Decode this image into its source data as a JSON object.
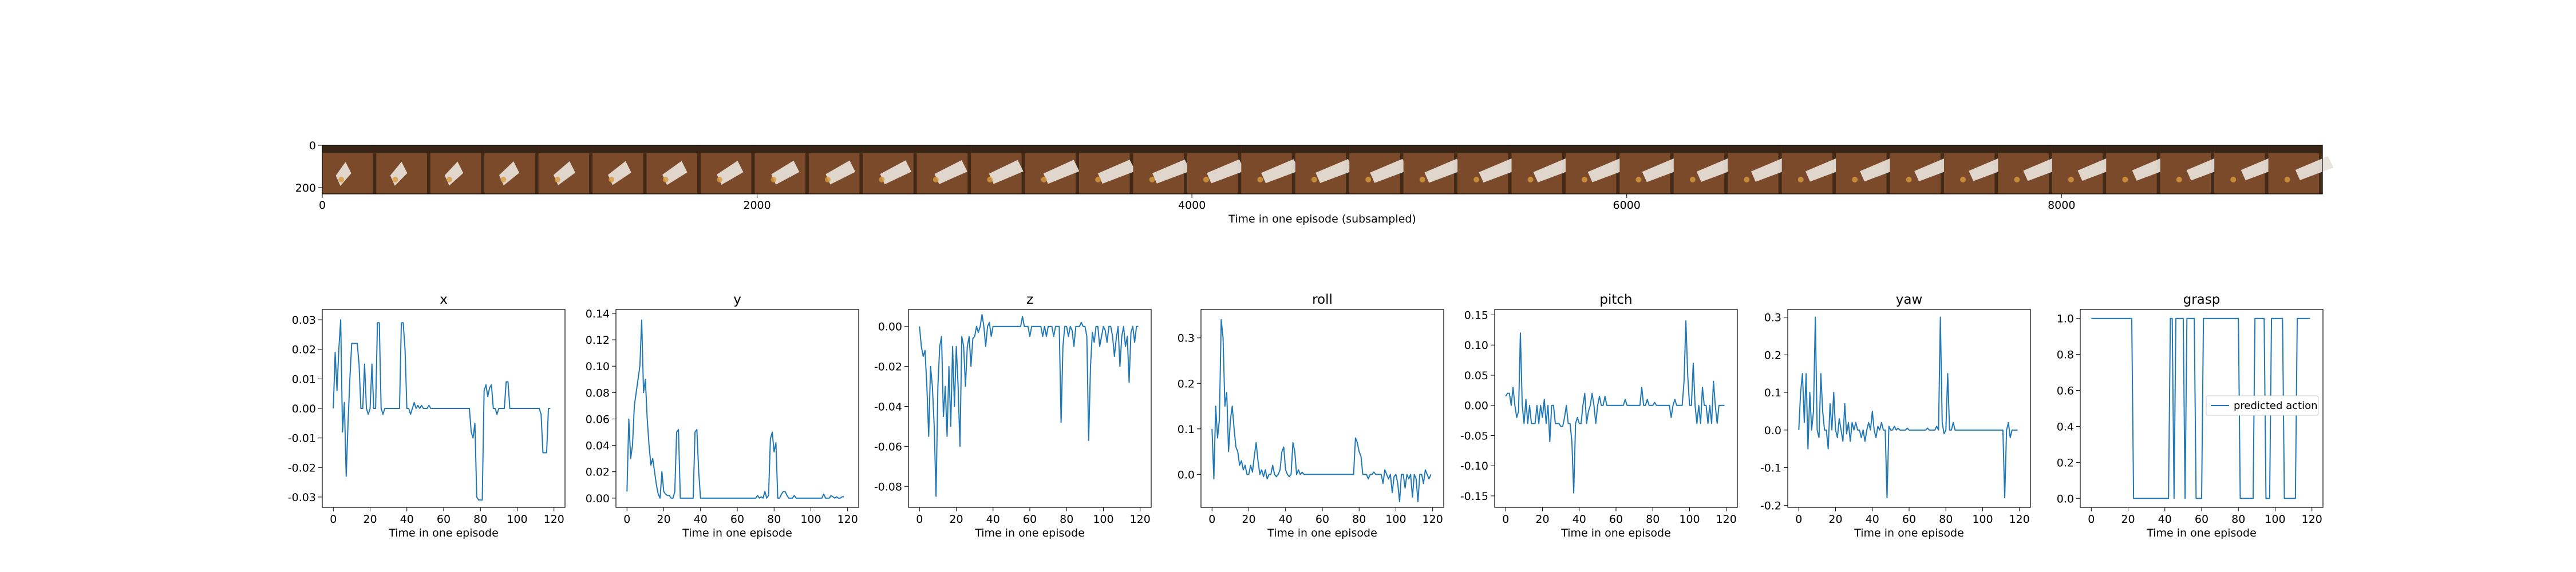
{
  "chart_data": [
    {
      "type": "image-strip",
      "xlabel": "Time in one episode (subsampled)",
      "xticks": [
        0,
        2000,
        4000,
        6000,
        8000
      ],
      "yticks": [
        0,
        200
      ],
      "xlim": [
        0,
        9200
      ],
      "ylim": [
        230,
        0
      ],
      "frame_count": 37,
      "colors": {
        "floor": "#7a4a2a",
        "floor_dark": "#3a2414",
        "object": "#e8e2da",
        "highlight": "#d89a3c"
      }
    },
    {
      "type": "line",
      "title": "x",
      "xlabel": "Time in one episode",
      "xticks": [
        0,
        20,
        40,
        60,
        80,
        100,
        120
      ],
      "yticks": [
        -0.03,
        -0.02,
        -0.01,
        0.0,
        0.01,
        0.02,
        0.03
      ],
      "ytick_decimals": 2,
      "xlim": [
        -6,
        126
      ],
      "ylim": [
        -0.0335,
        0.0335
      ],
      "series": [
        {
          "color": "#1f77b4",
          "y": [
            0.0,
            0.019,
            0.006,
            0.02,
            0.03,
            -0.008,
            0.002,
            -0.023,
            -0.005,
            0.01,
            0.022,
            0.022,
            0.022,
            0.022,
            0.015,
            0.0,
            0.0,
            0.015,
            0.0,
            -0.002,
            0.0,
            0.015,
            0.0,
            0.0,
            0.029,
            0.029,
            0.0,
            -0.002,
            0.0,
            0.0,
            0.0,
            0.0,
            0.0,
            0.0,
            0.0,
            0.0,
            0.0,
            0.029,
            0.029,
            0.02,
            0.0,
            0.0,
            -0.002,
            0.0,
            0.002,
            0.0,
            0.001,
            0.0,
            0.001,
            0.0,
            0.0,
            0.0,
            0.001,
            0.0,
            0.0,
            0.0,
            0.0,
            0.0,
            0.0,
            0.0,
            0.0,
            0.0,
            0.0,
            0.0,
            0.0,
            0.0,
            0.0,
            0.0,
            0.0,
            0.0,
            0.0,
            0.0,
            0.0,
            0.0,
            0.0,
            -0.008,
            -0.01,
            -0.005,
            -0.03,
            -0.031,
            -0.031,
            -0.031,
            0.006,
            0.008,
            0.004,
            0.007,
            0.008,
            0.0,
            0.0,
            -0.002,
            0.0,
            0.0,
            0.0,
            0.0,
            0.009,
            0.009,
            0.0,
            0.0,
            0.0,
            0.0,
            0.0,
            0.0,
            0.0,
            0.0,
            0.0,
            0.0,
            0.0,
            0.0,
            0.0,
            0.0,
            0.0,
            0.0,
            0.0,
            -0.002,
            -0.015,
            -0.015,
            -0.015,
            0.0,
            0.0
          ]
        }
      ]
    },
    {
      "type": "line",
      "title": "y",
      "xlabel": "Time in one episode",
      "xticks": [
        0,
        20,
        40,
        60,
        80,
        100,
        120
      ],
      "yticks": [
        0.0,
        0.02,
        0.04,
        0.06,
        0.08,
        0.1,
        0.12,
        0.14
      ],
      "ytick_decimals": 2,
      "xlim": [
        -6,
        126
      ],
      "ylim": [
        -0.007,
        0.143
      ],
      "series": [
        {
          "color": "#1f77b4",
          "y": [
            0.005,
            0.06,
            0.03,
            0.04,
            0.07,
            0.08,
            0.09,
            0.1,
            0.135,
            0.08,
            0.09,
            0.06,
            0.04,
            0.025,
            0.03,
            0.02,
            0.01,
            0.003,
            0.0,
            0.02,
            0.005,
            0.003,
            0.002,
            0.002,
            0.0,
            0.0,
            0.005,
            0.05,
            0.052,
            0.0,
            0.0,
            0.0,
            0.0,
            0.0,
            0.0,
            0.0,
            0.0,
            0.05,
            0.052,
            0.02,
            0.0,
            0.0,
            0.0,
            0.0,
            0.0,
            0.0,
            0.0,
            0.0,
            0.0,
            0.0,
            0.0,
            0.0,
            0.0,
            0.0,
            0.0,
            0.0,
            0.0,
            0.0,
            0.0,
            0.0,
            0.0,
            0.0,
            0.0,
            0.0,
            0.0,
            0.0,
            0.0,
            0.0,
            0.0,
            0.0,
            0.0,
            0.002,
            0.0,
            0.001,
            0.0,
            0.005,
            0.0,
            0.002,
            0.045,
            0.05,
            0.035,
            0.042,
            0.0,
            0.0,
            0.003,
            0.005,
            0.005,
            0.002,
            0.0,
            0.0,
            0.0,
            0.002,
            0.0,
            0.0,
            0.0,
            0.0,
            0.0,
            0.0,
            0.0,
            0.0,
            0.0,
            0.0,
            0.0,
            0.0,
            0.0,
            0.0,
            0.0,
            0.003,
            0.0,
            0.0,
            0.0,
            0.002,
            0.001,
            0.0,
            0.001,
            0.0,
            0.0,
            0.001,
            0.001
          ]
        }
      ]
    },
    {
      "type": "line",
      "title": "z",
      "xlabel": "Time in one episode",
      "xticks": [
        0,
        20,
        40,
        60,
        80,
        100,
        120
      ],
      "yticks": [
        -0.08,
        -0.06,
        -0.04,
        -0.02,
        0.0
      ],
      "ytick_decimals": 2,
      "xlim": [
        -6,
        126
      ],
      "ylim": [
        -0.0905,
        0.0085
      ],
      "series": [
        {
          "color": "#1f77b4",
          "y": [
            0.0,
            -0.01,
            -0.015,
            -0.012,
            -0.03,
            -0.055,
            -0.02,
            -0.03,
            -0.05,
            -0.085,
            -0.03,
            -0.01,
            -0.005,
            -0.045,
            -0.03,
            -0.055,
            -0.02,
            -0.05,
            -0.01,
            -0.04,
            -0.01,
            -0.03,
            -0.06,
            -0.005,
            -0.01,
            -0.03,
            -0.01,
            -0.005,
            -0.02,
            -0.006,
            -0.005,
            0.0,
            -0.003,
            0.0,
            0.006,
            0.0,
            -0.01,
            0.0,
            0.002,
            -0.005,
            0.0,
            0.0,
            0.0,
            0.0,
            0.0,
            0.0,
            0.0,
            0.0,
            0.0,
            0.0,
            0.0,
            0.0,
            0.0,
            0.0,
            0.0,
            0.0,
            0.005,
            0.0,
            0.0,
            0.0,
            -0.005,
            0.0,
            0.0,
            0.0,
            0.0,
            0.0,
            0.0,
            -0.005,
            0.0,
            -0.005,
            0.0,
            0.0,
            0.0,
            -0.005,
            0.0,
            0.0,
            0.0,
            -0.048,
            -0.01,
            0.0,
            0.0,
            -0.005,
            0.0,
            -0.002,
            -0.01,
            0.0,
            0.0,
            0.0,
            0.002,
            0.0,
            0.0,
            -0.005,
            -0.057,
            -0.02,
            -0.003,
            -0.008,
            0.0,
            0.0,
            -0.01,
            -0.005,
            0.0,
            -0.002,
            -0.008,
            0.0,
            0.0,
            -0.005,
            -0.015,
            -0.006,
            0.0,
            -0.02,
            -0.005,
            0.0,
            -0.01,
            -0.005,
            -0.028,
            -0.003,
            0.0,
            -0.008,
            0.0,
            0.0
          ]
        }
      ]
    },
    {
      "type": "line",
      "title": "roll",
      "xlabel": "Time in one episode",
      "xticks": [
        0,
        20,
        40,
        60,
        80,
        100,
        120
      ],
      "yticks": [
        0.0,
        0.1,
        0.2,
        0.3
      ],
      "ytick_decimals": 1,
      "xlim": [
        -6,
        126
      ],
      "ylim": [
        -0.0725,
        0.3625
      ],
      "series": [
        {
          "color": "#1f77b4",
          "y": [
            0.1,
            -0.01,
            0.15,
            0.08,
            0.12,
            0.34,
            0.3,
            0.15,
            0.18,
            0.05,
            0.12,
            0.15,
            0.1,
            0.06,
            0.05,
            0.02,
            0.03,
            0.01,
            0.02,
            0.0,
            0.0,
            0.02,
            0.005,
            0.04,
            0.07,
            0.03,
            0.0,
            0.01,
            -0.005,
            0.01,
            -0.01,
            0.0,
            0.0,
            0.02,
            0.0,
            -0.005,
            0.0,
            0.01,
            0.05,
            0.06,
            0.01,
            0.0,
            -0.005,
            0.0,
            0.07,
            0.05,
            0.0,
            0.01,
            0.0,
            0.005,
            0.0,
            0.0,
            0.0,
            0.0,
            0.0,
            0.0,
            0.0,
            0.0,
            0.0,
            0.0,
            0.0,
            0.0,
            0.0,
            0.0,
            0.0,
            0.0,
            0.0,
            0.0,
            0.0,
            0.0,
            0.0,
            0.0,
            0.0,
            0.0,
            0.0,
            0.0,
            0.0,
            0.0,
            0.08,
            0.07,
            0.05,
            0.04,
            0.0,
            0.0,
            0.0,
            -0.01,
            0.0,
            0.0,
            0.005,
            0.0,
            0.0,
            0.0,
            0.0,
            -0.02,
            0.01,
            0.0,
            -0.01,
            0.0,
            -0.04,
            -0.005,
            0.0,
            -0.02,
            -0.06,
            0.0,
            0.0,
            -0.03,
            0.0,
            -0.01,
            0.0,
            -0.05,
            0.0,
            -0.01,
            -0.06,
            0.0,
            0.0,
            -0.02,
            0.01,
            0.0,
            -0.01,
            0.0
          ]
        }
      ]
    },
    {
      "type": "line",
      "title": "pitch",
      "xlabel": "Time in one episode",
      "xticks": [
        0,
        20,
        40,
        60,
        80,
        100,
        120
      ],
      "yticks": [
        -0.15,
        -0.1,
        -0.05,
        0.0,
        0.05,
        0.1,
        0.15
      ],
      "ytick_decimals": 2,
      "xlim": [
        -6,
        126
      ],
      "ylim": [
        -0.169,
        0.159
      ],
      "series": [
        {
          "color": "#1f77b4",
          "y": [
            0.015,
            0.02,
            0.02,
            0.0,
            0.03,
            0.0,
            -0.02,
            -0.01,
            0.12,
            0.0,
            -0.03,
            0.01,
            -0.03,
            0.0,
            -0.03,
            -0.03,
            -0.03,
            0.0,
            -0.03,
            0.0,
            -0.02,
            0.01,
            -0.03,
            0.0,
            -0.06,
            0.0,
            0.0,
            -0.03,
            -0.03,
            -0.03,
            -0.035,
            -0.035,
            -0.02,
            0.0,
            -0.03,
            -0.03,
            -0.06,
            -0.145,
            -0.03,
            -0.02,
            -0.03,
            -0.03,
            0.0,
            0.02,
            -0.03,
            -0.01,
            0.0,
            0.02,
            0.0,
            -0.03,
            0.0,
            0.015,
            0.0,
            0.0,
            0.015,
            0.0,
            0.0,
            0.0,
            0.0,
            0.0,
            0.0,
            0.0,
            0.0,
            0.0,
            0.0,
            0.01,
            0.0,
            0.0,
            0.0,
            0.0,
            0.0,
            0.0,
            0.0,
            0.0,
            0.03,
            0.0,
            0.0,
            0.01,
            0.0,
            0.0,
            0.0,
            0.005,
            0.0,
            0.0,
            0.0,
            0.0,
            0.0,
            0.0,
            0.0,
            0.0,
            -0.02,
            0.0,
            0.01,
            0.0,
            0.0,
            0.0,
            0.0,
            0.04,
            0.14,
            0.05,
            0.0,
            0.0,
            0.07,
            0.0,
            -0.03,
            0.0,
            -0.03,
            0.03,
            0.0,
            0.0,
            -0.03,
            0.0,
            -0.03,
            0.04,
            0.0,
            -0.03,
            0.0,
            0.0,
            0.0,
            0.0
          ]
        }
      ]
    },
    {
      "type": "line",
      "title": "yaw",
      "xlabel": "Time in one episode",
      "xticks": [
        0,
        20,
        40,
        60,
        80,
        100,
        120
      ],
      "yticks": [
        -0.2,
        -0.1,
        0.0,
        0.1,
        0.2,
        0.3
      ],
      "ytick_decimals": 1,
      "xlim": [
        -6,
        126
      ],
      "ylim": [
        -0.2055,
        0.3205
      ],
      "series": [
        {
          "color": "#1f77b4",
          "y": [
            0.0,
            0.1,
            0.15,
            0.02,
            0.15,
            -0.05,
            0.1,
            0.0,
            0.05,
            0.3,
            0.0,
            -0.02,
            0.15,
            0.05,
            0.0,
            0.0,
            -0.05,
            0.07,
            0.0,
            0.1,
            0.0,
            -0.02,
            0.03,
            0.0,
            -0.03,
            0.07,
            -0.01,
            0.02,
            -0.03,
            0.02,
            0.0,
            0.02,
            0.0,
            0.0,
            -0.02,
            0.0,
            -0.03,
            0.0,
            0.02,
            0.0,
            0.05,
            0.0,
            -0.02,
            0.01,
            0.0,
            0.02,
            0.0,
            0.0,
            -0.18,
            0.01,
            0.0,
            0.0,
            0.01,
            0.0,
            0.005,
            0.0,
            0.0,
            0.0,
            0.0,
            0.005,
            0.0,
            0.0,
            0.0,
            0.0,
            0.0,
            0.0,
            0.0,
            0.0,
            0.0,
            0.0,
            0.005,
            0.0,
            0.0,
            0.0,
            0.0,
            0.01,
            0.0,
            0.3,
            0.02,
            -0.01,
            0.0,
            0.15,
            0.0,
            0.0,
            0.02,
            0.0,
            0.0,
            0.0,
            0.0,
            0.0,
            0.0,
            0.0,
            0.0,
            0.0,
            0.0,
            0.0,
            0.0,
            0.0,
            0.0,
            0.0,
            0.0,
            0.0,
            0.0,
            0.0,
            0.0,
            0.0,
            0.0,
            0.0,
            0.0,
            0.0,
            0.0,
            0.0,
            -0.18,
            0.0,
            0.02,
            -0.02,
            0.0,
            0.0,
            0.0,
            0.0
          ]
        }
      ]
    },
    {
      "type": "line",
      "title": "grasp",
      "xlabel": "Time in one episode",
      "xticks": [
        0,
        20,
        40,
        60,
        80,
        100,
        120
      ],
      "yticks": [
        0.0,
        0.2,
        0.4,
        0.6,
        0.8,
        1.0
      ],
      "ytick_decimals": 1,
      "xlim": [
        -6,
        126
      ],
      "ylim": [
        -0.05,
        1.05
      ],
      "legend": {
        "label": "predicted action",
        "placement": "center-right"
      },
      "series": [
        {
          "color": "#1f77b4",
          "y": [
            1,
            1,
            1,
            1,
            1,
            1,
            1,
            1,
            1,
            1,
            1,
            1,
            1,
            1,
            1,
            1,
            1,
            1,
            1,
            1,
            1,
            1,
            1,
            0,
            0,
            0,
            0,
            0,
            0,
            0,
            0,
            0,
            0,
            0,
            0,
            0,
            0,
            0,
            0,
            0,
            0,
            0,
            0,
            1,
            1,
            0,
            1,
            1,
            1,
            1,
            1,
            0,
            1,
            1,
            1,
            1,
            1,
            0,
            0,
            0,
            0,
            1,
            1,
            1,
            1,
            1,
            1,
            1,
            1,
            1,
            1,
            1,
            1,
            1,
            1,
            1,
            1,
            1,
            1,
            1,
            1,
            0,
            0,
            0,
            0,
            0,
            0,
            0,
            0,
            1,
            1,
            1,
            1,
            1,
            1,
            0,
            0,
            0,
            1,
            1,
            1,
            1,
            1,
            1,
            1,
            0,
            0,
            0,
            0,
            0,
            0,
            0,
            1,
            1,
            1,
            1,
            1,
            1,
            1,
            1
          ]
        }
      ]
    }
  ]
}
